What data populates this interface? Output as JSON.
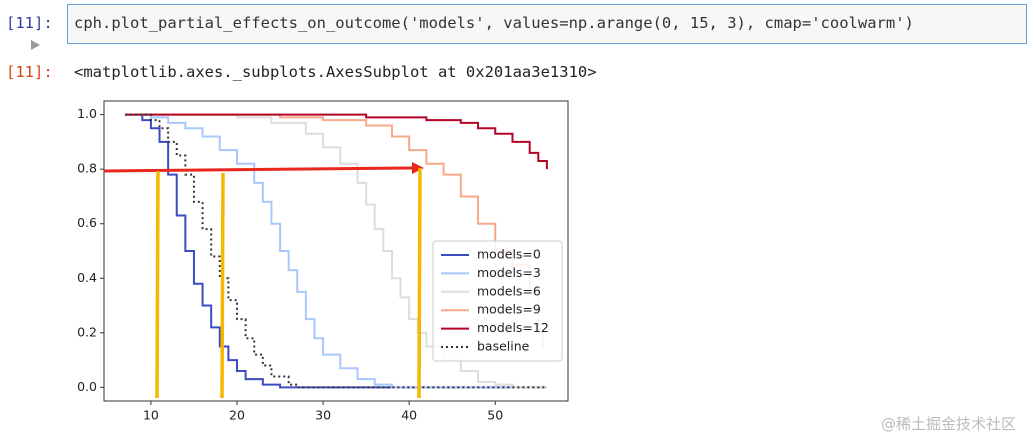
{
  "cell": {
    "in_prompt": "[11]:",
    "code": "cph.plot_partial_effects_on_outcome('models', values=np.arange(0, 15, 3), cmap='coolwarm')",
    "out_prompt": "[11]:",
    "output": "<matplotlib.axes._subplots.AxesSubplot at 0x201aa3e1310>"
  },
  "watermark": "@稀土掘金技术社区",
  "chart_data": {
    "type": "line",
    "step": "post",
    "grid": false,
    "legend": "center right",
    "xlim": [
      4.55,
      58.45
    ],
    "xticks": [
      10,
      20,
      30,
      40,
      50
    ],
    "ylim": [
      -0.05,
      1.05
    ],
    "yticks": [
      {
        "value": 0,
        "label": "0.0"
      },
      {
        "value": 0.2,
        "label": "0.2"
      },
      {
        "value": 0.4,
        "label": "0.4"
      },
      {
        "value": 0.6,
        "label": "0.6"
      },
      {
        "value": 0.8,
        "label": "0.8"
      },
      {
        "value": 1,
        "label": "1.0"
      }
    ],
    "series": [
      {
        "name": "models=0",
        "color": "#3b4cc0",
        "dash": "solid",
        "x": [
          7,
          9,
          10,
          11,
          12,
          13,
          14,
          15,
          16,
          17,
          18,
          19,
          20,
          21,
          23,
          25,
          56
        ],
        "values": [
          1,
          0.98,
          0.95,
          0.9,
          0.78,
          0.63,
          0.5,
          0.38,
          0.3,
          0.22,
          0.15,
          0.1,
          0.06,
          0.03,
          0.01,
          0,
          0
        ]
      },
      {
        "name": "models=3",
        "color": "#aac7fd",
        "dash": "solid",
        "x": [
          7,
          10,
          12,
          14,
          16,
          18,
          20,
          22,
          23,
          24,
          25,
          26,
          27,
          28,
          29,
          30,
          32,
          34,
          36,
          38,
          56
        ],
        "values": [
          1,
          0.99,
          0.97,
          0.95,
          0.92,
          0.87,
          0.82,
          0.75,
          0.68,
          0.6,
          0.5,
          0.43,
          0.35,
          0.25,
          0.18,
          0.12,
          0.07,
          0.03,
          0.01,
          0,
          0
        ]
      },
      {
        "name": "models=6",
        "color": "#dddddd",
        "dash": "solid",
        "x": [
          7,
          20,
          24,
          28,
          30,
          32,
          34,
          35,
          36,
          37,
          38,
          39,
          40,
          41,
          42,
          44,
          46,
          48,
          50,
          52,
          56
        ],
        "values": [
          1,
          0.99,
          0.97,
          0.93,
          0.88,
          0.82,
          0.75,
          0.67,
          0.58,
          0.5,
          0.4,
          0.33,
          0.25,
          0.2,
          0.15,
          0.1,
          0.06,
          0.02,
          0.01,
          0,
          0
        ]
      },
      {
        "name": "models=9",
        "color": "#f7a889",
        "dash": "solid",
        "x": [
          7,
          25,
          30,
          35,
          38,
          40,
          42,
          44,
          46,
          48,
          50,
          52,
          54,
          55,
          55.5
        ],
        "values": [
          1,
          0.99,
          0.98,
          0.96,
          0.92,
          0.87,
          0.82,
          0.78,
          0.7,
          0.6,
          0.5,
          0.45,
          0.35,
          0.2,
          0.14
        ]
      },
      {
        "name": "models=12",
        "color": "#b40426",
        "dash": "solid",
        "x": [
          7,
          35,
          42,
          46,
          48,
          50,
          52,
          54,
          55,
          56
        ],
        "values": [
          1,
          0.99,
          0.98,
          0.97,
          0.95,
          0.93,
          0.9,
          0.86,
          0.83,
          0.8
        ]
      },
      {
        "name": "baseline",
        "color": "#333333",
        "dash": "dotted",
        "x": [
          7,
          10,
          11,
          12,
          13,
          14,
          15,
          16,
          17,
          18,
          19,
          20,
          21,
          22,
          23,
          24,
          26,
          27,
          56
        ],
        "values": [
          1,
          0.98,
          0.95,
          0.9,
          0.85,
          0.78,
          0.68,
          0.58,
          0.48,
          0.4,
          0.32,
          0.25,
          0.18,
          0.12,
          0.08,
          0.04,
          0.01,
          0,
          0
        ]
      }
    ]
  }
}
